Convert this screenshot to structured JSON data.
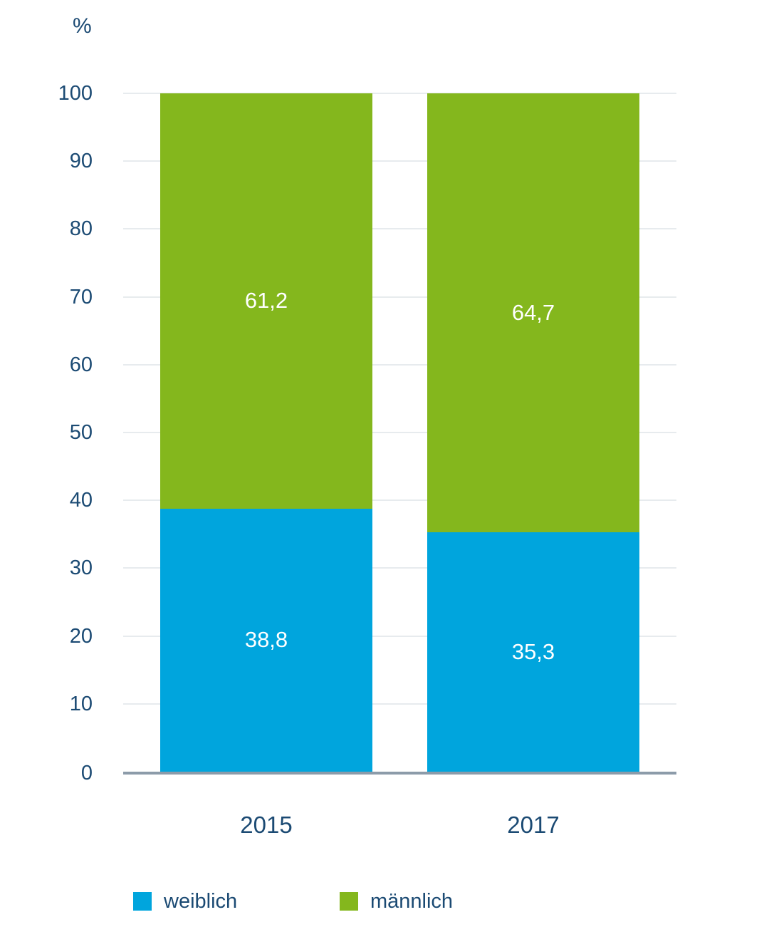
{
  "colors": {
    "text": "#1B4A73",
    "gridline": "#E7EBEE",
    "axis_line": "#8C9BA9",
    "value_label": "#ffffff"
  },
  "chart_data": {
    "type": "bar",
    "stacked": true,
    "title": "",
    "unit_label": "%",
    "categories": [
      "2015",
      "2017"
    ],
    "series": [
      {
        "name": "weiblich",
        "color": "#00A5DD",
        "values": [
          38.8,
          35.3
        ],
        "labels": [
          "38,8",
          "35,3"
        ]
      },
      {
        "name": "männlich",
        "color": "#84B71D",
        "values": [
          61.2,
          64.7
        ],
        "labels": [
          "61,2",
          "64,7"
        ]
      }
    ],
    "ylim": [
      0,
      100
    ],
    "yticks": [
      0,
      10,
      20,
      30,
      40,
      50,
      60,
      70,
      80,
      90,
      100
    ],
    "grid": true,
    "legend_position": "bottom",
    "legend": [
      "weiblich",
      "männlich"
    ]
  }
}
